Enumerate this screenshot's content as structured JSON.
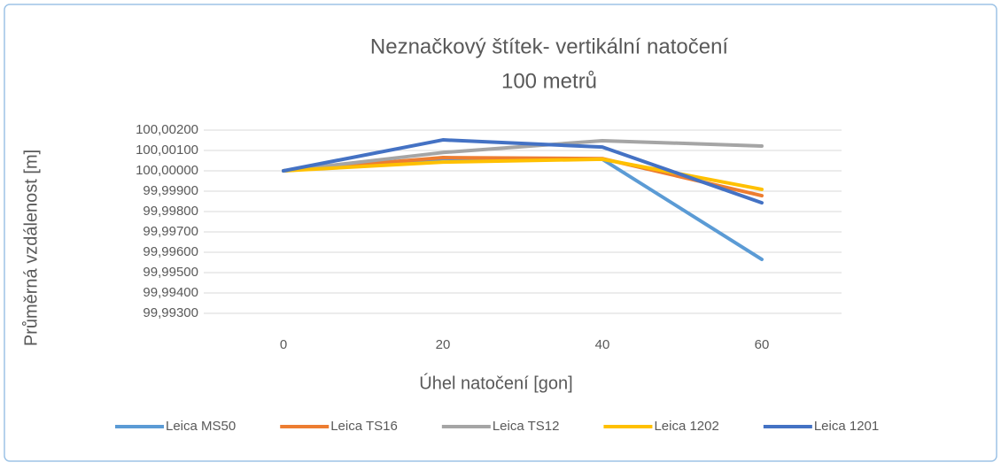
{
  "chart_data": {
    "type": "line",
    "title": "Neznačkový štítek- vertikální natočení",
    "subtitle": "100 metrů",
    "x_label": "Úhel natočení [gon]",
    "y_label": "Průměrná vzdálenost [m]",
    "categories": [
      "0",
      "20",
      "40",
      "60"
    ],
    "series": [
      {
        "name": "Leica MS50",
        "color": "#5b9bd5",
        "values": [
          100.0,
          100.0006,
          100.00057,
          99.99565
        ]
      },
      {
        "name": "Leica TS16",
        "color": "#ed7d31",
        "values": [
          100.0,
          100.00065,
          100.0006,
          99.99878
        ]
      },
      {
        "name": "Leica TS12",
        "color": "#a5a5a5",
        "values": [
          100.0,
          100.0009,
          100.00148,
          100.00122
        ]
      },
      {
        "name": "Leica 1202",
        "color": "#ffc000",
        "values": [
          100.0,
          100.00043,
          100.00057,
          99.99909
        ]
      },
      {
        "name": "Leica 1201",
        "color": "#4472c4",
        "values": [
          100.0,
          100.00152,
          100.00117,
          99.99843
        ]
      }
    ],
    "ylim": [
      99.993,
      100.002
    ],
    "yticks": [
      {
        "value": 99.993,
        "label": "99,99300"
      },
      {
        "value": 99.994,
        "label": "99,99400"
      },
      {
        "value": 99.995,
        "label": "99,99500"
      },
      {
        "value": 99.996,
        "label": "99,99600"
      },
      {
        "value": 99.997,
        "label": "99,99700"
      },
      {
        "value": 99.998,
        "label": "99,99800"
      },
      {
        "value": 99.999,
        "label": "99,99900"
      },
      {
        "value": 100.0,
        "label": "100,00000"
      },
      {
        "value": 100.001,
        "label": "100,00100"
      },
      {
        "value": 100.002,
        "label": "100,00200"
      }
    ],
    "grid": true,
    "legend": "bottom"
  }
}
